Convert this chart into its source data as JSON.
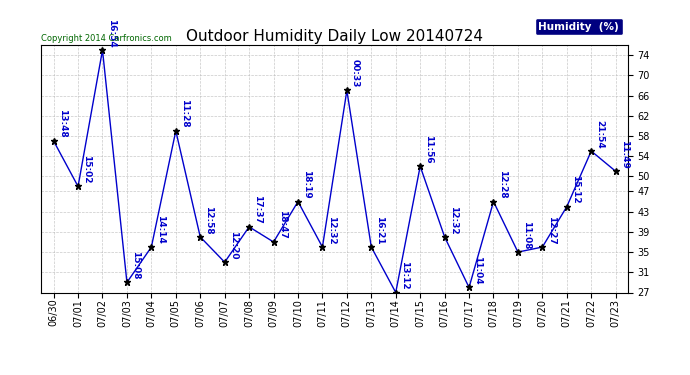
{
  "title": "Outdoor Humidity Daily Low 20140724",
  "copyright": "Copyright 2014 Carfronics.com",
  "legend_label": "Humidity  (%)",
  "ylim": [
    27,
    76
  ],
  "yticks": [
    27,
    31,
    35,
    39,
    43,
    47,
    50,
    54,
    58,
    62,
    66,
    70,
    74
  ],
  "dates": [
    "06/30",
    "07/01",
    "07/02",
    "07/03",
    "07/04",
    "07/05",
    "07/06",
    "07/07",
    "07/08",
    "07/09",
    "07/10",
    "07/11",
    "07/12",
    "07/13",
    "07/14",
    "07/15",
    "07/16",
    "07/17",
    "07/18",
    "07/19",
    "07/20",
    "07/21",
    "07/22",
    "07/23"
  ],
  "values": [
    57,
    48,
    75,
    29,
    36,
    59,
    38,
    33,
    40,
    37,
    45,
    36,
    67,
    36,
    27,
    52,
    38,
    28,
    45,
    35,
    36,
    44,
    55,
    51
  ],
  "time_labels": [
    "13:48",
    "15:02",
    "16:54",
    "15:08",
    "14:14",
    "11:28",
    "12:58",
    "12:20",
    "17:37",
    "18:47",
    "18:19",
    "12:32",
    "00:33",
    "16:21",
    "13:12",
    "11:56",
    "12:32",
    "11:04",
    "12:28",
    "11:08",
    "12:27",
    "15:12",
    "21:54",
    "11:49"
  ],
  "line_color": "#0000cc",
  "marker_color": "#000000",
  "bg_color": "#ffffff",
  "grid_color": "#bbbbbb",
  "legend_bg": "#000080",
  "legend_fg": "#ffffff",
  "title_fontsize": 11,
  "tick_fontsize": 7,
  "label_fontsize": 6.5,
  "copyright_color": "#006600",
  "copyright_fontsize": 6
}
